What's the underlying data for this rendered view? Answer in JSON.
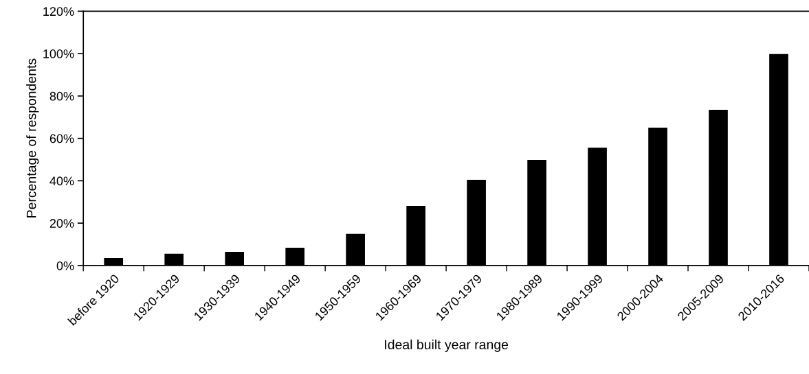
{
  "chart_data": {
    "type": "bar",
    "xlabel": "Ideal built year range",
    "ylabel": "Percentage of respondents",
    "categories": [
      "before 1920",
      "1920-1929",
      "1930-1939",
      "1940-1949",
      "1950-1959",
      "1960-1969",
      "1970-1979",
      "1980-1989",
      "1990-1999",
      "2000-2004",
      "2005-2009",
      "2010-2016"
    ],
    "values": [
      3.8,
      5.8,
      6.7,
      8.6,
      15.2,
      28.4,
      40.7,
      50.1,
      55.8,
      65.3,
      73.7,
      100
    ],
    "color": "#000000",
    "ylim": [
      0,
      120
    ],
    "yticks": [
      {
        "value": 0,
        "label": "0%"
      },
      {
        "value": 20,
        "label": "20%"
      },
      {
        "value": 40,
        "label": "40%"
      },
      {
        "value": 60,
        "label": "60%"
      },
      {
        "value": 80,
        "label": "80%"
      },
      {
        "value": 100,
        "label": "100%"
      },
      {
        "value": 120,
        "label": "120%"
      }
    ],
    "grid": false
  }
}
